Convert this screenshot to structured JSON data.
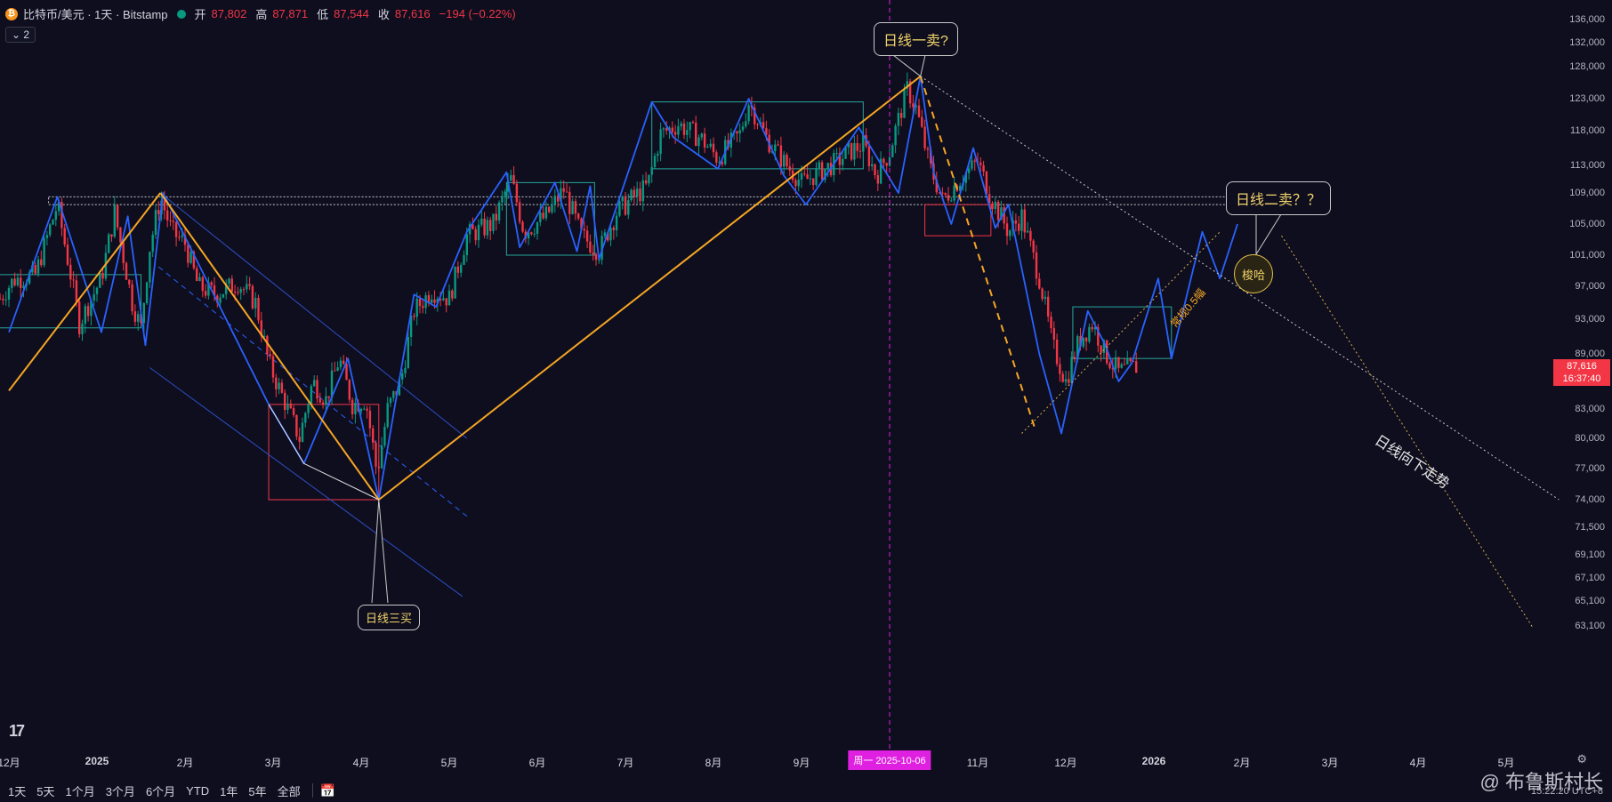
{
  "header": {
    "symbol": "比特币/美元 · 1天 · Bitstamp",
    "open_label": "开",
    "open": "87,802",
    "high_label": "高",
    "high": "87,871",
    "low_label": "低",
    "low": "87,544",
    "close_label": "收",
    "close": "87,616",
    "change": "−194 (−0.22%)",
    "indicator_count": "2"
  },
  "price": {
    "last": "87,616",
    "countdown": "16:37:40",
    "tag_color": "#f23645"
  },
  "crosshair": {
    "date_label": "周一 2025-10-06"
  },
  "annotations": {
    "sell1": "日线一卖?",
    "buy3": "日线三买",
    "sell2": "日线二卖？？",
    "circle": "梭哈",
    "fib": "常规0.5幅",
    "trend": "日线向下走势"
  },
  "toolbar": {
    "timeframes": [
      "1天",
      "5天",
      "1个月",
      "3个月",
      "6个月",
      "YTD",
      "1年",
      "5年",
      "全部"
    ],
    "calendar_icon": "calendar-icon"
  },
  "footer": {
    "watermark": "布鲁斯村长",
    "watermark_prefix": "@",
    "clock": "15:22:20 UTC+8"
  },
  "colors": {
    "up": "#089981",
    "down": "#f23645",
    "zigzag": "#2962ff",
    "trend": "#f5a623",
    "box": "#26a69a",
    "background": "#0f0e1f"
  },
  "chart_data": {
    "type": "candlestick",
    "y_ticks": [
      136000,
      132000,
      128000,
      123000,
      118000,
      113000,
      109000,
      105000,
      101000,
      97000,
      93000,
      89000,
      83000,
      80000,
      77000,
      74000,
      71500,
      69100,
      67100,
      65100,
      63100
    ],
    "y_tick_labels": [
      "136,000",
      "132,000",
      "128,000",
      "123,000",
      "118,000",
      "113,000",
      "109,000",
      "105,000",
      "101,000",
      "97,000",
      "93,000",
      "89,000",
      "83,000",
      "80,000",
      "77,000",
      "74,000",
      "71,500",
      "69,100",
      "67,100",
      "65,100",
      "63,100"
    ],
    "x_ticks": [
      {
        "label": "12月",
        "month": 0
      },
      {
        "label": "2025",
        "month": 1,
        "bold": true
      },
      {
        "label": "2月",
        "month": 2
      },
      {
        "label": "3月",
        "month": 3
      },
      {
        "label": "4月",
        "month": 4
      },
      {
        "label": "5月",
        "month": 5
      },
      {
        "label": "6月",
        "month": 6
      },
      {
        "label": "7月",
        "month": 7
      },
      {
        "label": "8月",
        "month": 8
      },
      {
        "label": "9月",
        "month": 9
      },
      {
        "label": "11月",
        "month": 11
      },
      {
        "label": "12月",
        "month": 12
      },
      {
        "label": "2026",
        "month": 13,
        "bold": true
      },
      {
        "label": "2月",
        "month": 14
      },
      {
        "label": "3月",
        "month": 15
      },
      {
        "label": "4月",
        "month": 16
      },
      {
        "label": "5月",
        "month": 17
      }
    ],
    "price_path": [
      [
        -0.1,
        95500
      ],
      [
        0.05,
        97800
      ],
      [
        0.3,
        98500
      ],
      [
        0.55,
        107500
      ],
      [
        0.8,
        92500
      ],
      [
        1.05,
        98000
      ],
      [
        1.2,
        106500
      ],
      [
        1.4,
        95000
      ],
      [
        1.5,
        92000
      ],
      [
        1.6,
        102000
      ],
      [
        1.72,
        108500
      ],
      [
        1.85,
        104000
      ],
      [
        2.0,
        102500
      ],
      [
        2.15,
        97000
      ],
      [
        2.35,
        96000
      ],
      [
        2.6,
        97500
      ],
      [
        2.8,
        95000
      ],
      [
        2.95,
        88000
      ],
      [
        3.1,
        84500
      ],
      [
        3.3,
        80000
      ],
      [
        3.45,
        86000
      ],
      [
        3.6,
        84000
      ],
      [
        3.75,
        88500
      ],
      [
        3.9,
        83500
      ],
      [
        4.05,
        84000
      ],
      [
        4.18,
        76500
      ],
      [
        4.3,
        83000
      ],
      [
        4.45,
        86000
      ],
      [
        4.6,
        94000
      ],
      [
        4.8,
        96500
      ],
      [
        5.0,
        95500
      ],
      [
        5.2,
        103500
      ],
      [
        5.5,
        105000
      ],
      [
        5.7,
        111000
      ],
      [
        5.85,
        104000
      ],
      [
        6.1,
        106000
      ],
      [
        6.3,
        109500
      ],
      [
        6.5,
        103500
      ],
      [
        6.7,
        101500
      ],
      [
        6.9,
        106500
      ],
      [
        7.1,
        108500
      ],
      [
        7.25,
        110000
      ],
      [
        7.4,
        117500
      ],
      [
        7.6,
        119000
      ],
      [
        7.85,
        117000
      ],
      [
        8.05,
        114000
      ],
      [
        8.3,
        117500
      ],
      [
        8.4,
        122500
      ],
      [
        8.6,
        117000
      ],
      [
        8.8,
        113500
      ],
      [
        9.0,
        110500
      ],
      [
        9.2,
        112000
      ],
      [
        9.4,
        113500
      ],
      [
        9.55,
        115000
      ],
      [
        9.7,
        116000
      ],
      [
        9.85,
        111500
      ],
      [
        10.0,
        115000
      ],
      [
        10.2,
        124500
      ],
      [
        10.3,
        121500
      ],
      [
        10.45,
        113000
      ],
      [
        10.6,
        108000
      ],
      [
        10.8,
        111000
      ],
      [
        11.0,
        113500
      ],
      [
        11.15,
        108500
      ],
      [
        11.35,
        104000
      ],
      [
        11.5,
        106000
      ],
      [
        11.7,
        98000
      ],
      [
        11.85,
        90000
      ],
      [
        12.0,
        86000
      ],
      [
        12.15,
        90500
      ],
      [
        12.3,
        92500
      ],
      [
        12.45,
        89000
      ],
      [
        12.6,
        87000
      ],
      [
        12.8,
        87616
      ]
    ],
    "zigzag_segments": [
      [
        [
          0.0,
          91500
        ],
        [
          0.55,
          108500
        ],
        [
          1.05,
          91500
        ],
        [
          1.35,
          106000
        ],
        [
          1.55,
          90000
        ],
        [
          1.75,
          109000
        ],
        [
          2.95,
          83500
        ],
        [
          3.35,
          77500
        ],
        [
          3.85,
          88500
        ],
        [
          4.2,
          74000
        ],
        [
          4.6,
          96000
        ],
        [
          4.85,
          94500
        ],
        [
          5.2,
          104000
        ],
        [
          5.65,
          112000
        ],
        [
          5.8,
          102000
        ],
        [
          6.2,
          110500
        ],
        [
          6.45,
          101500
        ],
        [
          6.6,
          110000
        ],
        [
          6.7,
          100500
        ],
        [
          7.3,
          122500
        ],
        [
          7.55,
          117000
        ],
        [
          8.05,
          112500
        ],
        [
          8.4,
          123000
        ],
        [
          8.8,
          111500
        ],
        [
          9.05,
          107500
        ],
        [
          9.65,
          118500
        ],
        [
          10.1,
          109000
        ],
        [
          10.35,
          126500
        ],
        [
          10.5,
          112000
        ],
        [
          10.7,
          105000
        ],
        [
          10.95,
          115500
        ],
        [
          11.2,
          104500
        ],
        [
          11.35,
          107500
        ],
        [
          11.7,
          89000
        ],
        [
          11.95,
          80500
        ],
        [
          12.25,
          94000
        ],
        [
          12.45,
          90000
        ],
        [
          12.6,
          86000
        ],
        [
          12.75,
          88000
        ]
      ],
      [
        [
          12.75,
          88000
        ],
        [
          13.05,
          98000
        ],
        [
          13.2,
          88500
        ],
        [
          13.55,
          104000
        ],
        [
          13.75,
          98000
        ],
        [
          13.95,
          105000
        ]
      ]
    ],
    "trend_lines": [
      {
        "from": [
          0.0,
          85000
        ],
        "to": [
          1.72,
          109000
        ]
      },
      {
        "from": [
          1.72,
          109000
        ],
        "to": [
          4.2,
          74000
        ]
      },
      {
        "from": [
          4.2,
          74000
        ],
        "to": [
          10.35,
          126500
        ]
      }
    ],
    "dashed_trend": {
      "from": [
        10.35,
        126500
      ],
      "to": [
        11.65,
        81000
      ]
    },
    "channels": [
      {
        "from": [
          1.72,
          109000
        ],
        "to": [
          5.2,
          80000
        ]
      },
      {
        "from": [
          1.6,
          87500
        ],
        "to": [
          5.15,
          65500
        ]
      }
    ],
    "channel_dashed": {
      "from": [
        1.7,
        99500
      ],
      "to": [
        5.2,
        72500
      ]
    },
    "boxes": [
      {
        "x1": -0.2,
        "x2": 1.5,
        "y1": 98500,
        "y2": 92000
      },
      {
        "x1": 5.65,
        "x2": 6.65,
        "y1": 110500,
        "y2": 101000
      },
      {
        "x1": 7.3,
        "x2": 9.7,
        "y1": 122500,
        "y2": 112500
      },
      {
        "x1": 12.08,
        "x2": 13.2,
        "y1": 94500,
        "y2": 88500
      }
    ],
    "red_boxes": [
      {
        "x1": 2.95,
        "x2": 4.2,
        "y1": 83500,
        "y2": 74000
      },
      {
        "x1": 10.4,
        "x2": 11.15,
        "y1": 107500,
        "y2": 103500
      }
    ],
    "resistance_band": [
      108500,
      107500
    ],
    "sell_diagonal": {
      "from": [
        10.35,
        126500
      ],
      "to": [
        17.6,
        74000
      ]
    },
    "fib_line": {
      "from": [
        11.5,
        80500
      ],
      "to": [
        13.75,
        104000
      ]
    },
    "target_line": {
      "from": [
        14.45,
        103500
      ],
      "to": [
        17.3,
        63000
      ]
    },
    "crosshair_month": 10.0
  }
}
